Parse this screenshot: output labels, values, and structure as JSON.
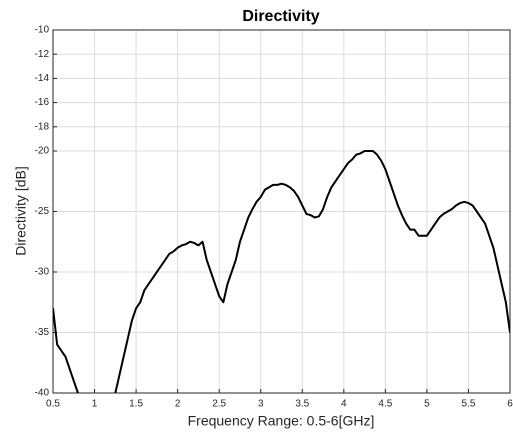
{
  "chart_data": {
    "type": "line",
    "title": "Directivity",
    "x_label": "Frequency Range: 0.5-6[GHz]",
    "y_label": "Directivity [dB]",
    "x": [
      0.5,
      0.55,
      0.6,
      0.65,
      0.7,
      0.75,
      0.8,
      0.85,
      0.9,
      0.95,
      1.0,
      1.05,
      1.1,
      1.15,
      1.2,
      1.25,
      1.3,
      1.35,
      1.4,
      1.45,
      1.5,
      1.55,
      1.6,
      1.65,
      1.7,
      1.75,
      1.8,
      1.85,
      1.9,
      1.95,
      2.0,
      2.05,
      2.1,
      2.15,
      2.2,
      2.25,
      2.3,
      2.35,
      2.4,
      2.45,
      2.5,
      2.55,
      2.6,
      2.65,
      2.7,
      2.75,
      2.8,
      2.85,
      2.9,
      2.95,
      3.0,
      3.05,
      3.1,
      3.15,
      3.2,
      3.25,
      3.3,
      3.35,
      3.4,
      3.45,
      3.5,
      3.55,
      3.6,
      3.65,
      3.7,
      3.75,
      3.8,
      3.85,
      3.9,
      3.95,
      4.0,
      4.05,
      4.1,
      4.15,
      4.2,
      4.25,
      4.3,
      4.35,
      4.4,
      4.45,
      4.5,
      4.55,
      4.6,
      4.65,
      4.7,
      4.75,
      4.8,
      4.85,
      4.9,
      4.95,
      5.0,
      5.05,
      5.1,
      5.15,
      5.2,
      5.25,
      5.3,
      5.35,
      5.4,
      5.45,
      5.5,
      5.55,
      5.6,
      5.65,
      5.7,
      5.75,
      5.8,
      5.85,
      5.9,
      5.95,
      6.0
    ],
    "values": [
      -33,
      -36,
      -36.5,
      -37,
      -38,
      -39,
      -40,
      -41,
      -41,
      -41,
      -41,
      -41,
      -41,
      -41,
      -41,
      -40,
      -38.5,
      -37,
      -35.5,
      -34,
      -33,
      -32.5,
      -31.5,
      -31,
      -30.5,
      -30,
      -29.5,
      -29,
      -28.5,
      -28.3,
      -28,
      -27.8,
      -27.7,
      -27.5,
      -27.6,
      -27.8,
      -27.5,
      -29,
      -30,
      -31,
      -32,
      -32.5,
      -31,
      -30,
      -29,
      -27.5,
      -26.5,
      -25.5,
      -24.8,
      -24.2,
      -23.8,
      -23.2,
      -23,
      -22.8,
      -22.8,
      -22.7,
      -22.8,
      -23,
      -23.3,
      -23.8,
      -24.5,
      -25.2,
      -25.3,
      -25.5,
      -25.4,
      -24.8,
      -23.8,
      -23,
      -22.5,
      -22,
      -21.5,
      -21,
      -20.7,
      -20.3,
      -20.2,
      -20,
      -20,
      -20,
      -20.3,
      -20.8,
      -21.5,
      -22.5,
      -23.5,
      -24.5,
      -25.3,
      -26,
      -26.5,
      -26.5,
      -27,
      -27,
      -27,
      -26.5,
      -26,
      -25.5,
      -25.2,
      -25,
      -24.8,
      -24.5,
      -24.3,
      -24.2,
      -24.3,
      -24.5,
      -25,
      -25.5,
      -26,
      -27,
      -28,
      -29.5,
      -31,
      -32.5,
      -35
    ],
    "color": "#000000",
    "xlim": [
      0.5,
      6
    ],
    "xticks": [
      0.5,
      1,
      1.5,
      2,
      2.5,
      3,
      3.5,
      4,
      4.5,
      5,
      5.5,
      6
    ],
    "ylim": [
      -40,
      -10
    ],
    "yticks": [
      -10,
      -12,
      -14,
      -16,
      -18,
      -20,
      -25,
      -30,
      -35,
      -40
    ],
    "grid": true
  }
}
